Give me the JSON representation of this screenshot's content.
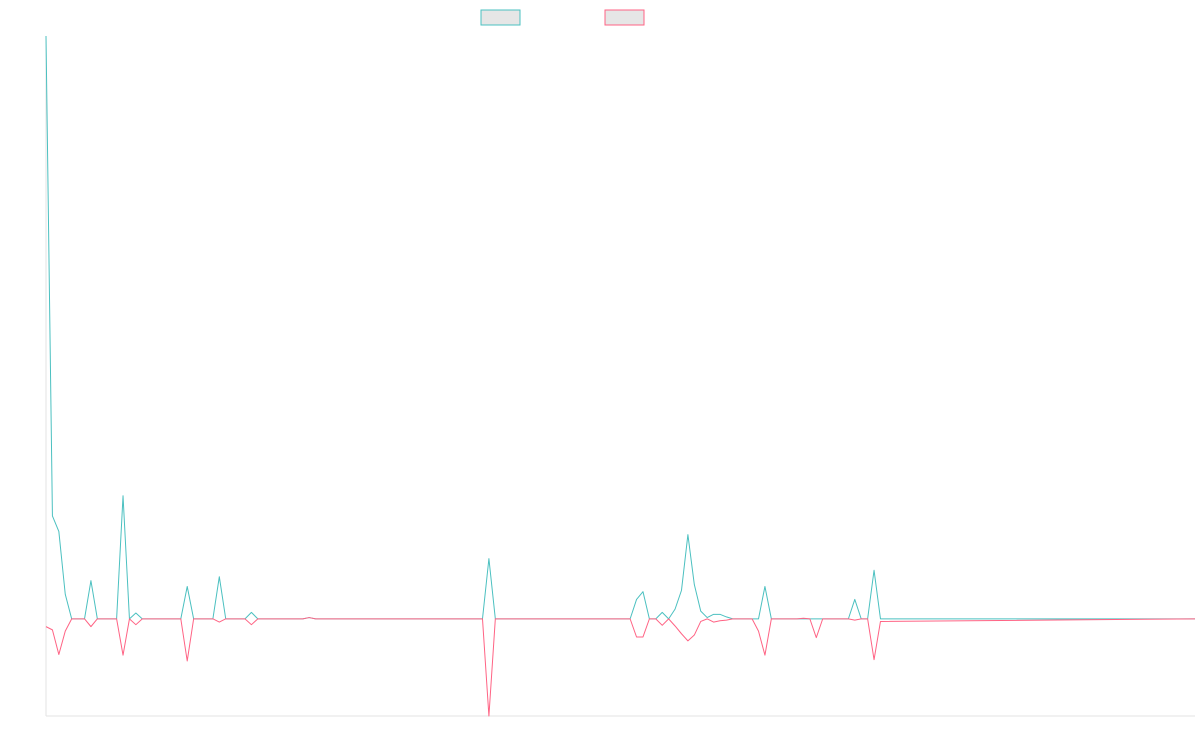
{
  "chart_data": {
    "type": "line",
    "title": "",
    "xlabel": "",
    "ylabel": "",
    "legend_placement": "top-center",
    "grid": false,
    "x_count": 180,
    "ylim": [
      -15,
      90
    ],
    "series": [
      {
        "color": "#4bc0c0",
        "fill": "#e6e6e6",
        "points": [
          [
            0,
            90
          ],
          [
            1,
            15.9
          ],
          [
            2,
            13.5
          ],
          [
            3,
            3.8
          ],
          [
            4,
            0
          ],
          [
            5,
            0
          ],
          [
            6,
            0
          ],
          [
            7,
            5.9
          ],
          [
            8,
            0
          ],
          [
            9,
            0
          ],
          [
            10,
            0
          ],
          [
            11,
            0
          ],
          [
            12,
            19
          ],
          [
            13,
            0
          ],
          [
            14,
            0.9
          ],
          [
            15,
            0
          ],
          [
            16,
            0
          ],
          [
            17,
            0
          ],
          [
            18,
            0
          ],
          [
            19,
            0
          ],
          [
            20,
            0
          ],
          [
            21,
            0
          ],
          [
            22,
            5
          ],
          [
            23,
            0
          ],
          [
            24,
            0
          ],
          [
            25,
            0
          ],
          [
            26,
            0
          ],
          [
            27,
            6.5
          ],
          [
            28,
            0
          ],
          [
            29,
            0
          ],
          [
            30,
            0
          ],
          [
            31,
            0
          ],
          [
            32,
            1
          ],
          [
            33,
            0
          ],
          [
            40,
            0
          ],
          [
            41,
            0.2
          ],
          [
            42,
            0
          ],
          [
            68,
            0
          ],
          [
            69,
            9.3
          ],
          [
            70,
            0
          ],
          [
            91,
            0
          ],
          [
            92,
            3
          ],
          [
            93,
            4.2
          ],
          [
            94,
            0
          ],
          [
            95,
            0
          ],
          [
            96,
            1
          ],
          [
            97,
            0
          ],
          [
            98,
            1.5
          ],
          [
            99,
            4.4
          ],
          [
            100,
            13
          ],
          [
            101,
            5.3
          ],
          [
            102,
            1.2
          ],
          [
            103,
            0.2
          ],
          [
            104,
            0.7
          ],
          [
            105,
            0.7
          ],
          [
            106,
            0.3
          ],
          [
            107,
            0
          ],
          [
            108,
            0
          ],
          [
            109,
            0
          ],
          [
            110,
            0
          ],
          [
            111,
            0
          ],
          [
            112,
            5
          ],
          [
            113,
            0
          ],
          [
            114,
            0
          ],
          [
            115,
            0
          ],
          [
            116,
            0
          ],
          [
            117,
            0
          ],
          [
            118,
            0
          ],
          [
            119,
            0
          ],
          [
            120,
            0
          ],
          [
            121,
            0
          ],
          [
            122,
            0
          ],
          [
            123,
            0
          ],
          [
            124,
            0
          ],
          [
            125,
            0
          ],
          [
            126,
            3
          ],
          [
            127,
            0
          ],
          [
            128,
            0
          ],
          [
            129,
            7.5
          ],
          [
            130,
            0
          ],
          [
            179,
            0
          ]
        ]
      },
      {
        "color": "#ff6384",
        "fill": "#e6e6e6",
        "points": [
          [
            0,
            -1.2
          ],
          [
            1,
            -1.7
          ],
          [
            2,
            -5.5
          ],
          [
            3,
            -1.9
          ],
          [
            4,
            0
          ],
          [
            5,
            0
          ],
          [
            6,
            0
          ],
          [
            7,
            -1.2
          ],
          [
            8,
            0
          ],
          [
            9,
            0
          ],
          [
            10,
            0
          ],
          [
            11,
            0
          ],
          [
            12,
            -5.6
          ],
          [
            13,
            0
          ],
          [
            14,
            -0.9
          ],
          [
            15,
            0
          ],
          [
            16,
            0
          ],
          [
            17,
            0
          ],
          [
            18,
            0
          ],
          [
            19,
            0
          ],
          [
            20,
            0
          ],
          [
            21,
            0
          ],
          [
            22,
            -6.5
          ],
          [
            23,
            0
          ],
          [
            24,
            0
          ],
          [
            25,
            0
          ],
          [
            26,
            0
          ],
          [
            27,
            -0.5
          ],
          [
            28,
            0
          ],
          [
            29,
            0
          ],
          [
            30,
            0
          ],
          [
            31,
            0
          ],
          [
            32,
            -0.9
          ],
          [
            33,
            0
          ],
          [
            40,
            0
          ],
          [
            41,
            0.2
          ],
          [
            42,
            0
          ],
          [
            68,
            0
          ],
          [
            69,
            -15
          ],
          [
            70,
            0
          ],
          [
            91,
            0
          ],
          [
            92,
            -2.8
          ],
          [
            93,
            -2.8
          ],
          [
            94,
            0
          ],
          [
            95,
            0
          ],
          [
            96,
            -1
          ],
          [
            97,
            0
          ],
          [
            98,
            -1.1
          ],
          [
            99,
            -2.3
          ],
          [
            100,
            -3.4
          ],
          [
            101,
            -2.5
          ],
          [
            102,
            -0.4
          ],
          [
            103,
            0
          ],
          [
            104,
            -0.5
          ],
          [
            105,
            -0.3
          ],
          [
            106,
            -0.2
          ],
          [
            107,
            0
          ],
          [
            108,
            0
          ],
          [
            109,
            0
          ],
          [
            110,
            0
          ],
          [
            111,
            -1.9
          ],
          [
            112,
            -5.6
          ],
          [
            113,
            0
          ],
          [
            114,
            0
          ],
          [
            115,
            0
          ],
          [
            116,
            0
          ],
          [
            117,
            0
          ],
          [
            118,
            0.1
          ],
          [
            119,
            0
          ],
          [
            120,
            -2.9
          ],
          [
            121,
            0
          ],
          [
            122,
            0
          ],
          [
            123,
            0
          ],
          [
            124,
            0
          ],
          [
            125,
            0
          ],
          [
            126,
            -0.2
          ],
          [
            127,
            0
          ],
          [
            128,
            0
          ],
          [
            129,
            -6.3
          ],
          [
            130,
            -0.4
          ],
          [
            179,
            0
          ]
        ]
      }
    ]
  }
}
